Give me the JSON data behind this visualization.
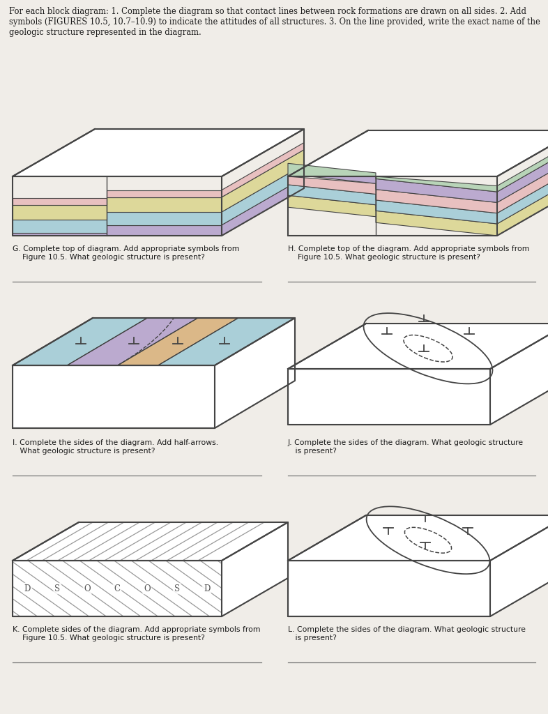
{
  "bg_color": "#f0ede8",
  "title_text": "For each block diagram: 1. Complete the diagram so that contact lines between rock formations are drawn on all sides. 2. Add\nsymbols (FIGURES 10.5, 10.7–10.9) to indicate the attitudes of all structures. 3. On the line provided, write the exact name of the\ngeologic structure represented in the diagram.",
  "caption_G": "G. Complete top of diagram. Add appropriate symbols from\n    Figure 10.5. What geologic structure is present?",
  "caption_H": "H. Complete top of the diagram. Add appropriate symbols from\n    Figure 10.5. What geologic structure is present?",
  "caption_I": "I. Complete the sides of the diagram. Add half-arrows.\n   What geologic structure is present?",
  "caption_J": "J. Complete the sides of the diagram. What geologic structure\n   is present?",
  "caption_K": "K. Complete sides of the diagram. Add appropriate symbols from\n    Figure 10.5. What geologic structure is present?",
  "caption_L": "L. Complete the sides of the diagram. What geologic structure\n   is present?",
  "figures_color": "#c8440a",
  "colors": {
    "yellow": "#ddd89a",
    "cyan": "#aacfd8",
    "lavender": "#bbaacf",
    "pink": "#e8c0c0",
    "green_light": "#b8d4b8",
    "orange": "#dbb888",
    "outline": "#444444",
    "white": "#ffffff",
    "line": "#444444",
    "diag_line": "#999999"
  }
}
